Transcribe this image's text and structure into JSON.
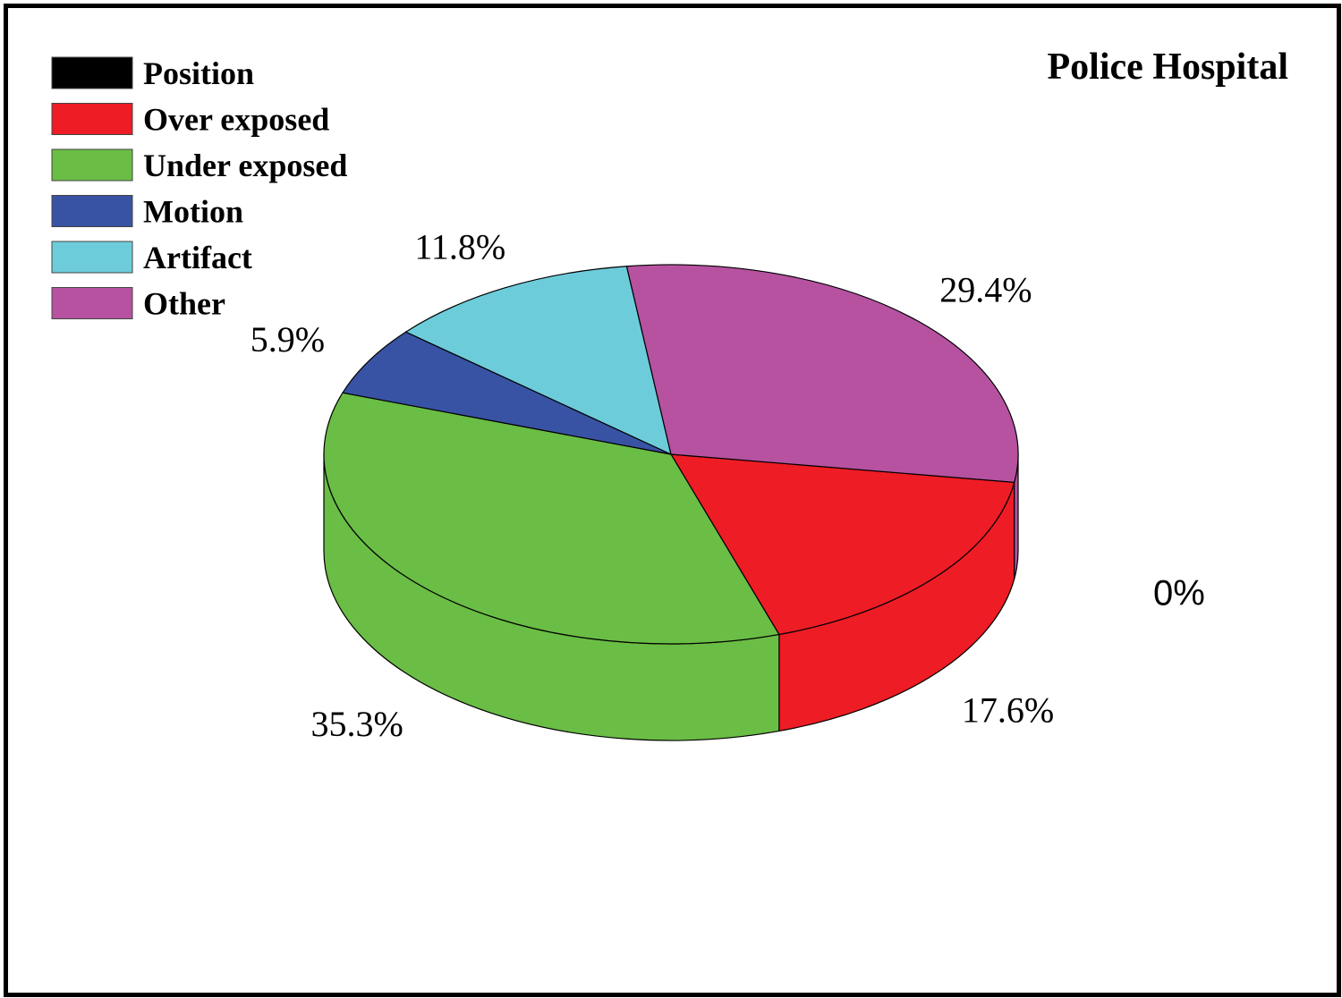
{
  "chart_data": {
    "type": "pie",
    "title": "Police Hospital",
    "style": "3d",
    "legend_position": "top-left",
    "categories": [
      "Position",
      "Over exposed",
      "Under exposed",
      "Motion",
      "Artifact",
      "Other"
    ],
    "values": [
      0,
      17.6,
      35.3,
      5.9,
      11.8,
      29.4
    ],
    "labels": [
      "0%",
      "17.6%",
      "35.3%",
      "5.9%",
      "11.8%",
      "29.4%"
    ],
    "colors": [
      "#000000",
      "#ee1c25",
      "#6abd45",
      "#3953a4",
      "#6dccda",
      "#b652a0"
    ]
  }
}
